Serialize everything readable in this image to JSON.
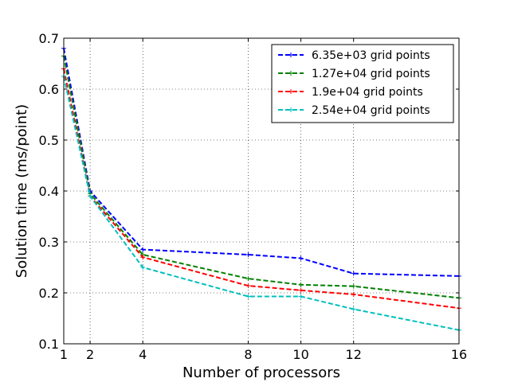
{
  "chart_data": {
    "type": "line",
    "xlabel": "Number of processors",
    "ylabel": "Solution time (ms/point)",
    "xlim": [
      1,
      16
    ],
    "ylim": [
      0.1,
      0.7
    ],
    "xticks": [
      1,
      2,
      4,
      8,
      10,
      12,
      16
    ],
    "yticks": [
      0.1,
      0.2,
      0.3,
      0.4,
      0.5,
      0.6,
      0.7
    ],
    "ytick_labels": [
      "0.1",
      "0.2",
      "0.3",
      "0.4",
      "0.5",
      "0.6",
      "0.7"
    ],
    "grid": true,
    "legend_position": "top-right",
    "x": [
      1,
      2,
      4,
      8,
      10,
      12,
      16
    ],
    "series": [
      {
        "name": "6.35e+03 grid points",
        "color": "#0000ff",
        "values": [
          0.68,
          0.4,
          0.285,
          0.275,
          0.268,
          0.238,
          0.233
        ]
      },
      {
        "name": "1.27e+04 grid points",
        "color": "#008000",
        "values": [
          0.665,
          0.395,
          0.275,
          0.228,
          0.216,
          0.213,
          0.19
        ]
      },
      {
        "name": "1.9e+04 grid points",
        "color": "#ff0000",
        "values": [
          0.64,
          0.39,
          0.27,
          0.214,
          0.205,
          0.197,
          0.17
        ]
      },
      {
        "name": "2.54e+04 grid points",
        "color": "#00bfbf",
        "values": [
          0.625,
          0.39,
          0.25,
          0.193,
          0.193,
          0.168,
          0.127
        ]
      }
    ]
  }
}
